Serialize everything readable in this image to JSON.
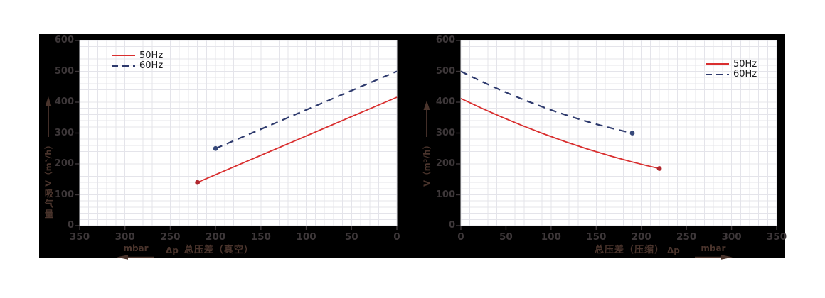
{
  "style": {
    "panel_color": "#000000",
    "plot_bg": "#ffffff",
    "grid_color": "#e4e4ea",
    "tick_text_color": "#3d3739",
    "axis_label_color": "#4a342c",
    "legend_text_color": "#1d1d1f"
  },
  "chart_data": [
    {
      "type": "line",
      "id": "vacuum",
      "x_label": "总压差（真空）",
      "dp_symbol": "Δp",
      "x_unit": "mbar",
      "x_arrow_direction": "left",
      "y_label_cjk": "吸气量",
      "y_label_latin": "V（m³/h）",
      "xlim": [
        0,
        350
      ],
      "ylim": [
        0,
        600
      ],
      "x_reversed": true,
      "x_ticks": [
        350,
        300,
        250,
        200,
        150,
        100,
        50,
        0
      ],
      "y_ticks": [
        600,
        500,
        400,
        300,
        200,
        100,
        0
      ],
      "x_minor_step": 10,
      "y_minor_step": 20,
      "grid": true,
      "legend_position": "top-left",
      "legend": [
        {
          "label": "50Hz",
          "color": "#d92f2f",
          "dash": false
        },
        {
          "label": "60Hz",
          "color": "#2e3a6d",
          "dash": true
        }
      ],
      "series": [
        {
          "name": "50Hz",
          "color": "#d92f2f",
          "dash": false,
          "points": [
            [
              220,
              140
            ],
            [
              0,
              416
            ]
          ],
          "marker": [
            220,
            140
          ],
          "marker_color": "#b0272e"
        },
        {
          "name": "60Hz",
          "color": "#2e3a6d",
          "dash": true,
          "points": [
            [
              200,
              250
            ],
            [
              0,
              500
            ]
          ],
          "marker": [
            200,
            250
          ],
          "marker_color": "#37497a"
        }
      ]
    },
    {
      "type": "line",
      "id": "compression",
      "x_label": "总压差（压缩）",
      "dp_symbol": "Δp",
      "x_unit": "mbar",
      "x_arrow_direction": "right",
      "y_label_cjk": "",
      "y_label_latin": "V（m³/h）",
      "xlim": [
        0,
        350
      ],
      "ylim": [
        0,
        600
      ],
      "x_reversed": false,
      "x_ticks": [
        0,
        50,
        100,
        150,
        200,
        250,
        300,
        350
      ],
      "y_ticks": [
        600,
        500,
        400,
        300,
        200,
        100,
        0
      ],
      "x_minor_step": 10,
      "y_minor_step": 20,
      "grid": true,
      "legend_position": "top-right",
      "legend": [
        {
          "label": "50Hz",
          "color": "#d92f2f",
          "dash": false
        },
        {
          "label": "60Hz",
          "color": "#2e3a6d",
          "dash": true
        }
      ],
      "series": [
        {
          "name": "50Hz",
          "color": "#d92f2f",
          "dash": false,
          "points": [
            [
              0,
              412
            ],
            [
              110,
              278
            ],
            [
              220,
              185
            ]
          ],
          "marker": [
            220,
            185
          ],
          "marker_color": "#b0272e"
        },
        {
          "name": "60Hz",
          "color": "#2e3a6d",
          "dash": true,
          "points": [
            [
              0,
              500
            ],
            [
              95,
              380
            ],
            [
              190,
              300
            ]
          ],
          "marker": [
            190,
            300
          ],
          "marker_color": "#37497a"
        }
      ]
    }
  ]
}
